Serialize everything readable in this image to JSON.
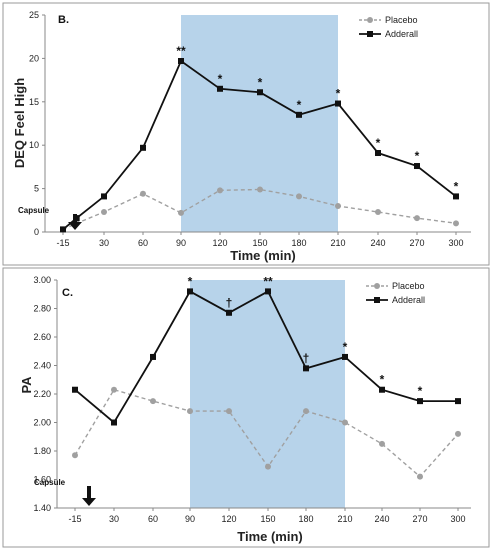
{
  "colors": {
    "adderall": "#111111",
    "placebo": "#a0a0a0",
    "shade": "#b7d3ea"
  },
  "chart_data": [
    {
      "type": "line",
      "panel_label": "B.",
      "xlabel": "Time (min)",
      "ylabel": "DEQ Feel High",
      "ylim": [
        0,
        25
      ],
      "yticks": [
        "0",
        "5",
        "10",
        "15",
        "20",
        "25"
      ],
      "categories": [
        "-15",
        "30",
        "60",
        "90",
        "120",
        "150",
        "180",
        "210",
        "240",
        "270",
        "300"
      ],
      "shaded_range": [
        90,
        210
      ],
      "legend_position": "top-right",
      "series": [
        {
          "name": "Placebo",
          "style": "dashed",
          "marker": "circle",
          "x": [
            -15,
            0,
            30,
            60,
            90,
            120,
            150,
            180,
            210,
            240,
            270,
            300
          ],
          "values": [
            0.3,
            1.0,
            2.3,
            4.4,
            2.2,
            4.8,
            4.9,
            4.1,
            3.0,
            2.3,
            1.6,
            1.0
          ]
        },
        {
          "name": "Adderall",
          "style": "solid",
          "marker": "square",
          "x": [
            -15,
            0,
            30,
            60,
            90,
            120,
            150,
            180,
            210,
            240,
            270,
            300
          ],
          "values": [
            0.3,
            1.6,
            4.1,
            9.7,
            19.7,
            16.5,
            16.1,
            13.5,
            14.8,
            9.1,
            7.6,
            4.1
          ]
        }
      ],
      "annotations": [
        {
          "x": 90,
          "text": "**"
        },
        {
          "x": 120,
          "text": "*"
        },
        {
          "x": 150,
          "text": "*"
        },
        {
          "x": 180,
          "text": "*"
        },
        {
          "x": 210,
          "text": "*"
        },
        {
          "x": 240,
          "text": "*"
        },
        {
          "x": 270,
          "text": "*"
        },
        {
          "x": 300,
          "text": "*"
        }
      ],
      "capsule_label": "Capsule"
    },
    {
      "type": "line",
      "panel_label": "C.",
      "xlabel": "Time (min)",
      "ylabel": "PA",
      "ylim": [
        1.4,
        3.0
      ],
      "yticks": [
        "1.40",
        "1.60",
        "1.80",
        "2.00",
        "2.20",
        "2.40",
        "2.60",
        "2.80",
        "3.00"
      ],
      "categories": [
        "-15",
        "30",
        "60",
        "90",
        "120",
        "150",
        "180",
        "210",
        "240",
        "270",
        "300"
      ],
      "shaded_range": [
        90,
        210
      ],
      "legend_position": "top-right",
      "series": [
        {
          "name": "Placebo",
          "style": "dashed",
          "marker": "circle",
          "x": [
            -15,
            30,
            60,
            90,
            120,
            150,
            180,
            210,
            240,
            270,
            300
          ],
          "values": [
            1.77,
            2.23,
            2.15,
            2.08,
            2.08,
            1.69,
            2.08,
            2.0,
            1.85,
            1.62,
            1.92
          ]
        },
        {
          "name": "Adderall",
          "style": "solid",
          "marker": "square",
          "x": [
            -15,
            30,
            60,
            90,
            120,
            150,
            180,
            210,
            240,
            270,
            300
          ],
          "values": [
            2.23,
            2.0,
            2.46,
            2.92,
            2.77,
            2.92,
            2.38,
            2.46,
            2.23,
            2.15,
            2.15
          ]
        }
      ],
      "annotations": [
        {
          "x": 90,
          "text": "*"
        },
        {
          "x": 120,
          "text": "†"
        },
        {
          "x": 150,
          "text": "**"
        },
        {
          "x": 180,
          "text": "†"
        },
        {
          "x": 210,
          "text": "*"
        },
        {
          "x": 240,
          "text": "*"
        },
        {
          "x": 270,
          "text": "*"
        }
      ],
      "capsule_label": "Capsule"
    }
  ]
}
